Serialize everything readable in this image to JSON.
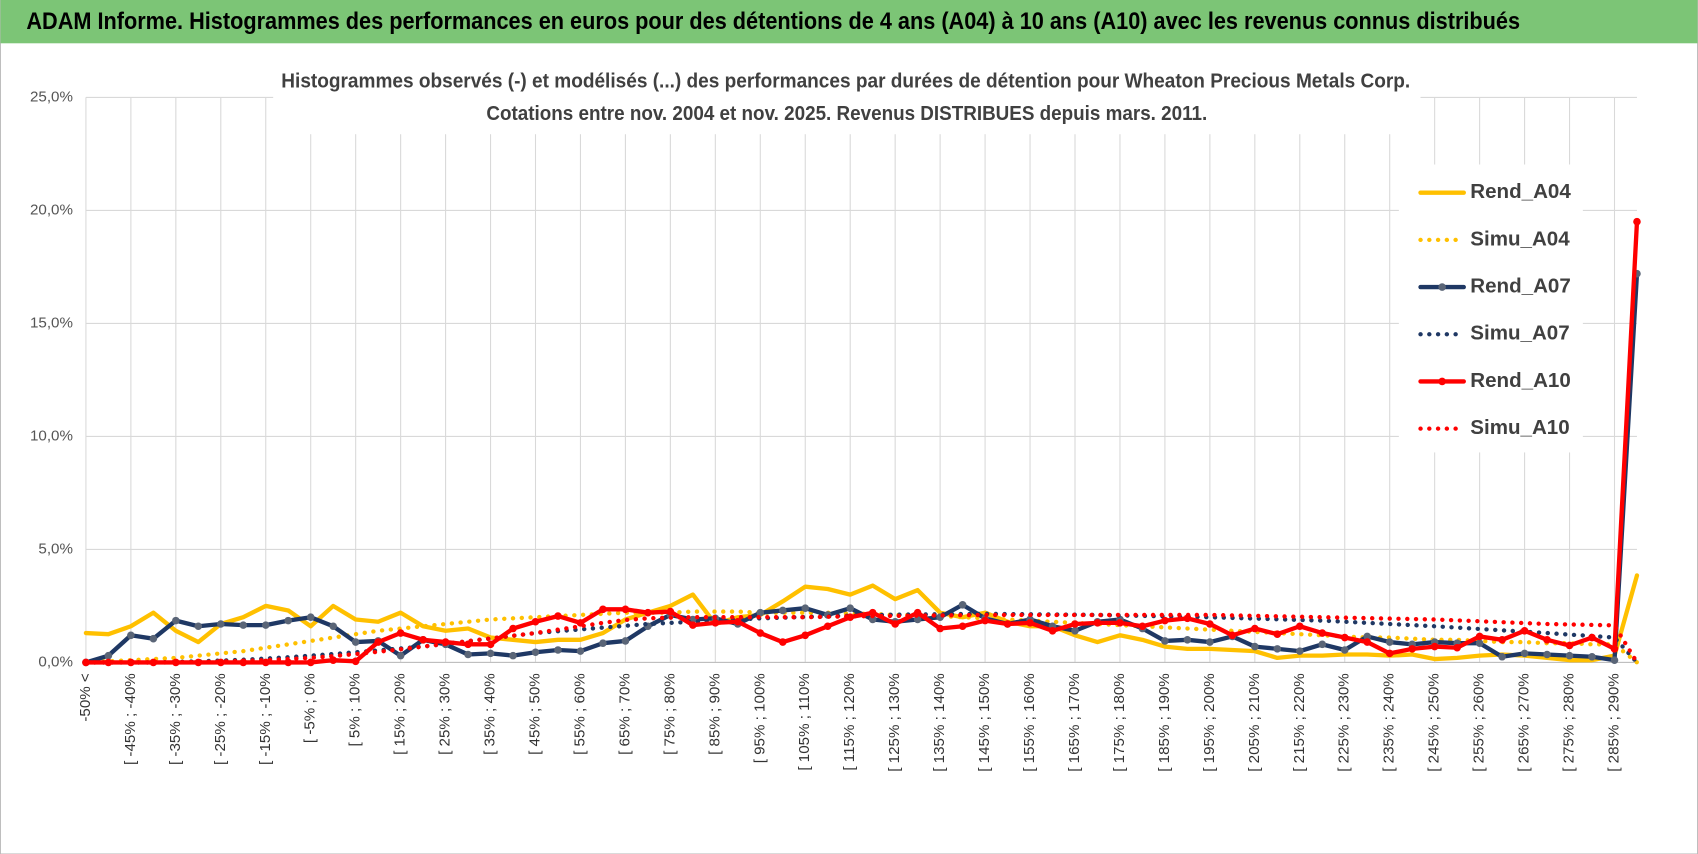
{
  "header_title": "ADAM Informe. Histogrammes des performances en euros pour des détentions de 4 ans (A04) à 10 ans (A10) avec les revenus connus distribués",
  "chart_data": {
    "type": "line",
    "title": "Histogrammes observés (-) et modélisés (...) des performances par durées de détention pour Wheaton Precious Metals Corp.",
    "subtitle": "Cotations entre nov. 2004 et nov. 2025. Revenus DISTRIBUES depuis mars. 2011.",
    "categories": [
      "-50% <",
      null,
      "[ -45% ; -40%",
      null,
      "[ -35% ; -30%",
      null,
      "[ -25% ; -20%",
      null,
      "[ -15% ; -10%",
      null,
      "[ -5% ; 0%",
      null,
      "[ 5% ; 10%",
      null,
      "[ 15% ; 20%",
      null,
      "[ 25% ; 30%",
      null,
      "[ 35% ; 40%",
      null,
      "[ 45% ; 50%",
      null,
      "[ 55% ; 60%",
      null,
      "[ 65% ; 70%",
      null,
      "[ 75% ; 80%",
      null,
      "[ 85% ; 90%",
      null,
      "[ 95% ; 100%",
      null,
      "[ 105% ; 110%",
      null,
      "[ 115% ; 120%",
      null,
      "[ 125% ; 130%",
      null,
      "[ 135% ; 140%",
      null,
      "[ 145% ; 150%",
      null,
      "[ 155% ; 160%",
      null,
      "[ 165% ; 170%",
      null,
      "[ 175% ; 180%",
      null,
      "[ 185% ; 190%",
      null,
      "[ 195% ; 200%",
      null,
      "[ 205% ; 210%",
      null,
      "[ 215% ; 220%",
      null,
      "[ 225% ; 230%",
      null,
      "[ 235% ; 240%",
      null,
      "[ 245% ; 250%",
      null,
      "[ 255% ; 260%",
      null,
      "[ 265% ; 270%",
      null,
      "[ 275% ; 280%",
      null,
      "[ 285% ; 290%",
      null
    ],
    "ylim": [
      0,
      25
    ],
    "yticks": [
      {
        "value": 0,
        "label": "0,0%"
      },
      {
        "value": 5,
        "label": "5,0%"
      },
      {
        "value": 10,
        "label": "10,0%"
      },
      {
        "value": 15,
        "label": "15,0%"
      },
      {
        "value": 20,
        "label": "20,0%"
      },
      {
        "value": 25,
        "label": "25,0%"
      }
    ],
    "grid": true,
    "legend": "right",
    "series": [
      {
        "name": "Rend_A04",
        "color": "#FFC000",
        "style": "solid",
        "values": [
          1.3,
          1.25,
          1.6,
          2.2,
          1.4,
          0.9,
          1.7,
          2.0,
          2.5,
          2.3,
          1.6,
          2.5,
          1.9,
          1.8,
          2.2,
          1.6,
          1.4,
          1.5,
          1.1,
          1.0,
          0.9,
          1.0,
          1.0,
          1.3,
          1.9,
          2.2,
          2.5,
          3.0,
          1.7,
          2.0,
          2.1,
          2.7,
          3.35,
          3.25,
          3.0,
          3.4,
          2.8,
          3.2,
          2.2,
          2.0,
          2.2,
          1.8,
          1.6,
          1.6,
          1.2,
          0.9,
          1.2,
          1.0,
          0.7,
          0.6,
          0.6,
          0.55,
          0.5,
          0.2,
          0.3,
          0.3,
          0.35,
          0.35,
          0.3,
          0.35,
          0.15,
          0.2,
          0.3,
          0.35,
          0.3,
          0.2,
          0.1,
          0.1,
          0.3,
          3.85
        ]
      },
      {
        "name": "Simu_A04",
        "color": "#FFC000",
        "style": "dotted",
        "values": [
          0.05,
          0.05,
          0.1,
          0.15,
          0.2,
          0.3,
          0.4,
          0.5,
          0.65,
          0.8,
          0.95,
          1.1,
          1.25,
          1.4,
          1.5,
          1.6,
          1.7,
          1.8,
          1.9,
          1.95,
          2.0,
          2.05,
          2.1,
          2.15,
          2.2,
          2.2,
          2.2,
          2.25,
          2.25,
          2.25,
          2.2,
          2.2,
          2.2,
          2.2,
          2.15,
          2.15,
          2.1,
          2.1,
          2.05,
          2.0,
          1.95,
          1.9,
          1.85,
          1.8,
          1.75,
          1.7,
          1.65,
          1.6,
          1.55,
          1.5,
          1.45,
          1.4,
          1.35,
          1.3,
          1.25,
          1.2,
          1.15,
          1.1,
          1.1,
          1.05,
          1.0,
          1.0,
          0.95,
          0.9,
          0.9,
          0.85,
          0.85,
          0.8,
          0.8,
          0.0
        ]
      },
      {
        "name": "Rend_A07",
        "color": "#1F3864",
        "style": "solid",
        "marker": "#5A6577",
        "values": [
          0,
          0.3,
          1.2,
          1.05,
          1.85,
          1.6,
          1.7,
          1.65,
          1.65,
          1.85,
          2.0,
          1.6,
          0.9,
          0.95,
          0.3,
          1.0,
          0.8,
          0.35,
          0.4,
          0.3,
          0.45,
          0.55,
          0.5,
          0.85,
          0.95,
          1.6,
          2.1,
          1.9,
          1.95,
          1.7,
          2.2,
          2.3,
          2.4,
          2.1,
          2.4,
          1.9,
          1.8,
          1.9,
          2.0,
          2.55,
          1.95,
          1.7,
          1.9,
          1.6,
          1.4,
          1.8,
          1.9,
          1.5,
          0.95,
          1.0,
          0.9,
          1.15,
          0.7,
          0.6,
          0.5,
          0.8,
          0.55,
          1.15,
          0.9,
          0.8,
          0.9,
          0.85,
          0.85,
          0.25,
          0.4,
          0.35,
          0.3,
          0.25,
          0.1,
          17.2
        ]
      },
      {
        "name": "Simu_A07",
        "color": "#1F3864",
        "style": "dotted",
        "values": [
          0,
          0,
          0,
          0,
          0.02,
          0.05,
          0.08,
          0.12,
          0.17,
          0.23,
          0.3,
          0.37,
          0.45,
          0.53,
          0.62,
          0.7,
          0.82,
          0.94,
          1.06,
          1.18,
          1.3,
          1.38,
          1.46,
          1.54,
          1.62,
          1.7,
          1.75,
          1.8,
          1.85,
          1.9,
          1.95,
          1.98,
          2.01,
          2.04,
          2.07,
          2.1,
          2.11,
          2.12,
          2.13,
          2.14,
          2.15,
          2.14,
          2.13,
          2.12,
          2.11,
          2.1,
          2.08,
          2.06,
          2.04,
          2.02,
          2.0,
          1.97,
          1.94,
          1.91,
          1.88,
          1.85,
          1.8,
          1.75,
          1.7,
          1.65,
          1.6,
          1.54,
          1.48,
          1.42,
          1.36,
          1.3,
          1.23,
          1.17,
          1.1,
          0
        ]
      },
      {
        "name": "Rend_A10",
        "color": "#FF0000",
        "style": "solid",
        "marker": "#FF0000",
        "values": [
          0,
          0,
          0,
          0,
          0,
          0,
          0,
          0,
          0,
          0,
          0,
          0.1,
          0.05,
          0.9,
          1.3,
          1.0,
          0.9,
          0.8,
          0.8,
          1.5,
          1.8,
          2.05,
          1.75,
          2.35,
          2.35,
          2.2,
          2.25,
          1.65,
          1.75,
          1.8,
          1.3,
          0.9,
          1.2,
          1.6,
          2.0,
          2.2,
          1.7,
          2.2,
          1.5,
          1.6,
          1.85,
          1.7,
          1.75,
          1.4,
          1.7,
          1.75,
          1.75,
          1.6,
          1.85,
          1.95,
          1.7,
          1.2,
          1.5,
          1.25,
          1.6,
          1.3,
          1.1,
          0.9,
          0.4,
          0.6,
          0.7,
          0.65,
          1.15,
          1.0,
          1.4,
          1.0,
          0.75,
          1.1,
          0.6,
          19.5
        ]
      },
      {
        "name": "Simu_A10",
        "color": "#FF0000",
        "style": "dotted",
        "values": [
          0,
          0,
          0,
          0,
          0,
          0.02,
          0.04,
          0.07,
          0.1,
          0.15,
          0.2,
          0.28,
          0.37,
          0.47,
          0.58,
          0.7,
          0.82,
          0.94,
          1.06,
          1.18,
          1.3,
          1.45,
          1.6,
          1.75,
          1.88,
          1.95,
          1.98,
          2.0,
          2.0,
          2.0,
          2.0,
          2.0,
          2.0,
          2.02,
          2.04,
          2.05,
          2.06,
          2.07,
          2.08,
          2.09,
          2.1,
          2.1,
          2.1,
          2.1,
          2.1,
          2.1,
          2.1,
          2.1,
          2.1,
          2.1,
          2.1,
          2.08,
          2.06,
          2.04,
          2.02,
          2.0,
          1.98,
          1.96,
          1.94,
          1.92,
          1.9,
          1.86,
          1.82,
          1.78,
          1.74,
          1.7,
          1.68,
          1.66,
          1.64,
          0
        ]
      }
    ]
  }
}
